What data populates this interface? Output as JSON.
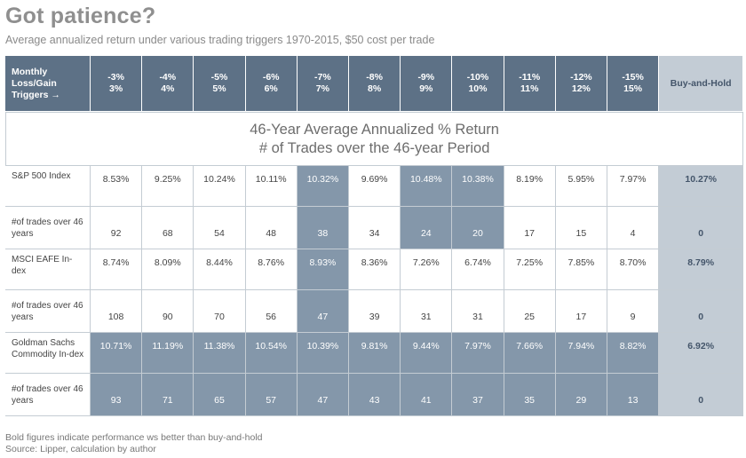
{
  "title": "Got patience?",
  "subtitle": "Average annualized return under various trading triggers 1970-2015, $50 cost per trade",
  "colors": {
    "header": "#5d7186",
    "highlight": "#8497aa",
    "buy_and_hold": "#c3ccd5"
  },
  "chart_data": {
    "type": "table",
    "corner_header": "Monthly Loss/Gain Triggers →",
    "banner_line1": "46-Year Average Annualized % Return",
    "banner_line2": "# of Trades over the 46-year Period",
    "columns": [
      {
        "loss": "-3%",
        "gain": "3%"
      },
      {
        "loss": "-4%",
        "gain": "4%"
      },
      {
        "loss": "-5%",
        "gain": "5%"
      },
      {
        "loss": "-6%",
        "gain": "6%"
      },
      {
        "loss": "-7%",
        "gain": "7%"
      },
      {
        "loss": "-8%",
        "gain": "8%"
      },
      {
        "loss": "-9%",
        "gain": "9%"
      },
      {
        "loss": "-10%",
        "gain": "10%"
      },
      {
        "loss": "-11%",
        "gain": "11%"
      },
      {
        "loss": "-12%",
        "gain": "12%"
      },
      {
        "loss": "-15%",
        "gain": "15%"
      }
    ],
    "buy_hold_header": "Buy-and-Hold",
    "rows": [
      {
        "name": "S&P 500 Index",
        "trades_label": "#of trades over 46 years",
        "returns": [
          "8.53%",
          "9.25%",
          "10.24%",
          "10.11%",
          "10.32%",
          "9.69%",
          "10.48%",
          "10.38%",
          "8.19%",
          "5.95%",
          "7.97%"
        ],
        "trades": [
          "92",
          "68",
          "54",
          "48",
          "38",
          "34",
          "24",
          "20",
          "17",
          "15",
          "4"
        ],
        "outperform": [
          false,
          false,
          false,
          false,
          true,
          false,
          true,
          true,
          false,
          false,
          false
        ],
        "buy_hold_return": "10.27%",
        "buy_hold_trades": "0"
      },
      {
        "name": "MSCI EAFE In-dex",
        "trades_label": "#of trades over 46 years",
        "returns": [
          "8.74%",
          "8.09%",
          "8.44%",
          "8.76%",
          "8.93%",
          "8.36%",
          "7.26%",
          "6.74%",
          "7.25%",
          "7.85%",
          "8.70%"
        ],
        "trades": [
          "108",
          "90",
          "70",
          "56",
          "47",
          "39",
          "31",
          "31",
          "25",
          "17",
          "9"
        ],
        "outperform": [
          false,
          false,
          false,
          false,
          true,
          false,
          false,
          false,
          false,
          false,
          false
        ],
        "buy_hold_return": "8.79%",
        "buy_hold_trades": "0"
      },
      {
        "name": "Goldman Sachs Commodity In-dex",
        "trades_label": "#of trades over 46 years",
        "returns": [
          "10.71%",
          "11.19%",
          "11.38%",
          "10.54%",
          "10.39%",
          "9.81%",
          "9.44%",
          "7.97%",
          "7.66%",
          "7.94%",
          "8.82%"
        ],
        "trades": [
          "93",
          "71",
          "65",
          "57",
          "47",
          "43",
          "41",
          "37",
          "35",
          "29",
          "13"
        ],
        "outperform": [
          true,
          true,
          true,
          true,
          true,
          true,
          true,
          true,
          true,
          true,
          true
        ],
        "buy_hold_return": "6.92%",
        "buy_hold_trades": "0"
      }
    ]
  },
  "footnotes": {
    "line1": "Bold figures indicate performance ws better than buy-and-hold",
    "line2": "Source: Lipper, calculation by author"
  }
}
